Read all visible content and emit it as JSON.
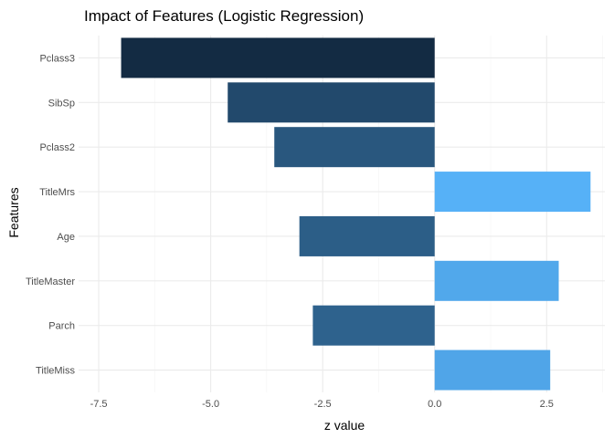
{
  "chart_data": {
    "type": "bar",
    "orientation": "horizontal",
    "title": "Impact of Features (Logistic Regression)",
    "xlabel": "z value",
    "ylabel": "Features",
    "categories": [
      "Pclass3",
      "SibSp",
      "Pclass2",
      "TitleMrs",
      "Age",
      "TitleMaster",
      "Parch",
      "TitleMiss"
    ],
    "values": [
      -7.0,
      -4.62,
      -3.58,
      3.48,
      -3.02,
      2.77,
      -2.72,
      2.58
    ],
    "xticks": [
      -7.5,
      -5.0,
      -2.5,
      0.0,
      2.5
    ],
    "xtick_labels": [
      "-7.5",
      "-5.0",
      "-2.5",
      "0.0",
      "2.5"
    ],
    "xlim": [
      -7.95,
      3.8
    ],
    "grid": true,
    "color_low": "#132b43",
    "color_high": "#56b1f7"
  }
}
